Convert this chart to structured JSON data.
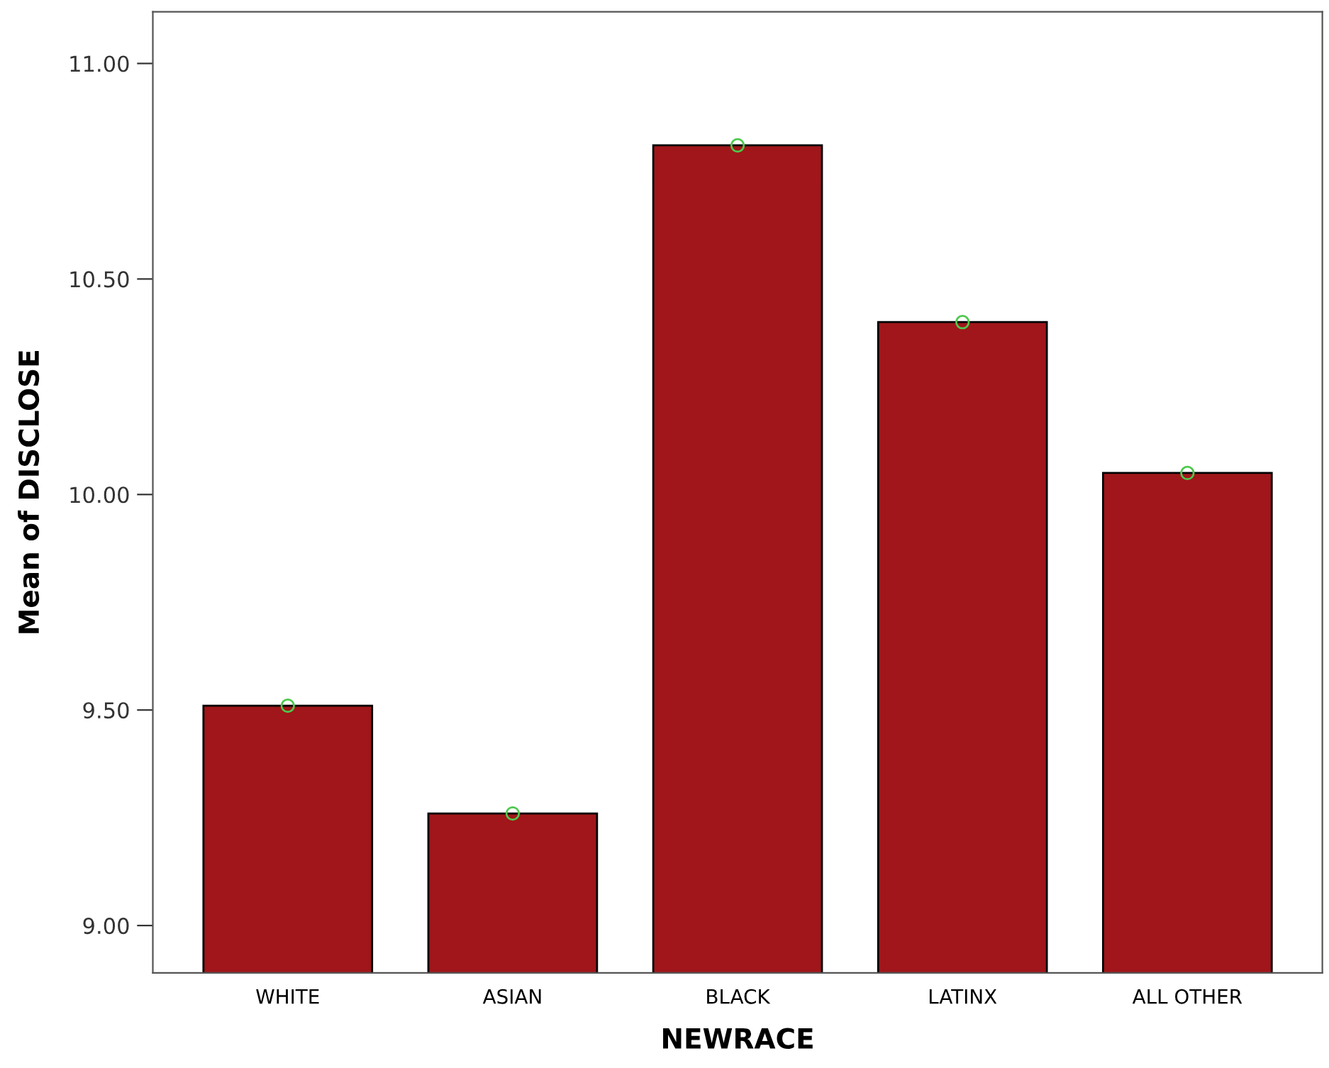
{
  "chart_data": {
    "type": "bar",
    "xlabel": "NEWRACE",
    "ylabel": "Mean of DISCLOSE",
    "categories": [
      "WHITE",
      "ASIAN",
      "BLACK",
      "LATINX",
      "ALL OTHER"
    ],
    "series": [
      {
        "color": "#a0161a",
        "values": [
          9.51,
          9.26,
          10.81,
          10.4,
          10.05
        ]
      },
      {
        "type": "scatter",
        "color": "#4ec94e",
        "marker": "circle",
        "x": [
          "WHITE",
          "ASIAN",
          "BLACK",
          "LATINX",
          "ALL OTHER"
        ],
        "values": [
          9.51,
          9.26,
          10.81,
          10.4,
          10.05
        ]
      }
    ],
    "ylim": [
      8.89,
      11.12
    ],
    "yticks": [
      {
        "value": 9,
        "label": "9.00"
      },
      {
        "value": 9.5,
        "label": "9.50"
      },
      {
        "value": 10,
        "label": "10.00"
      },
      {
        "value": 10.5,
        "label": "10.50"
      },
      {
        "value": 11,
        "label": "11.00"
      }
    ],
    "grid": false,
    "legend": false
  }
}
